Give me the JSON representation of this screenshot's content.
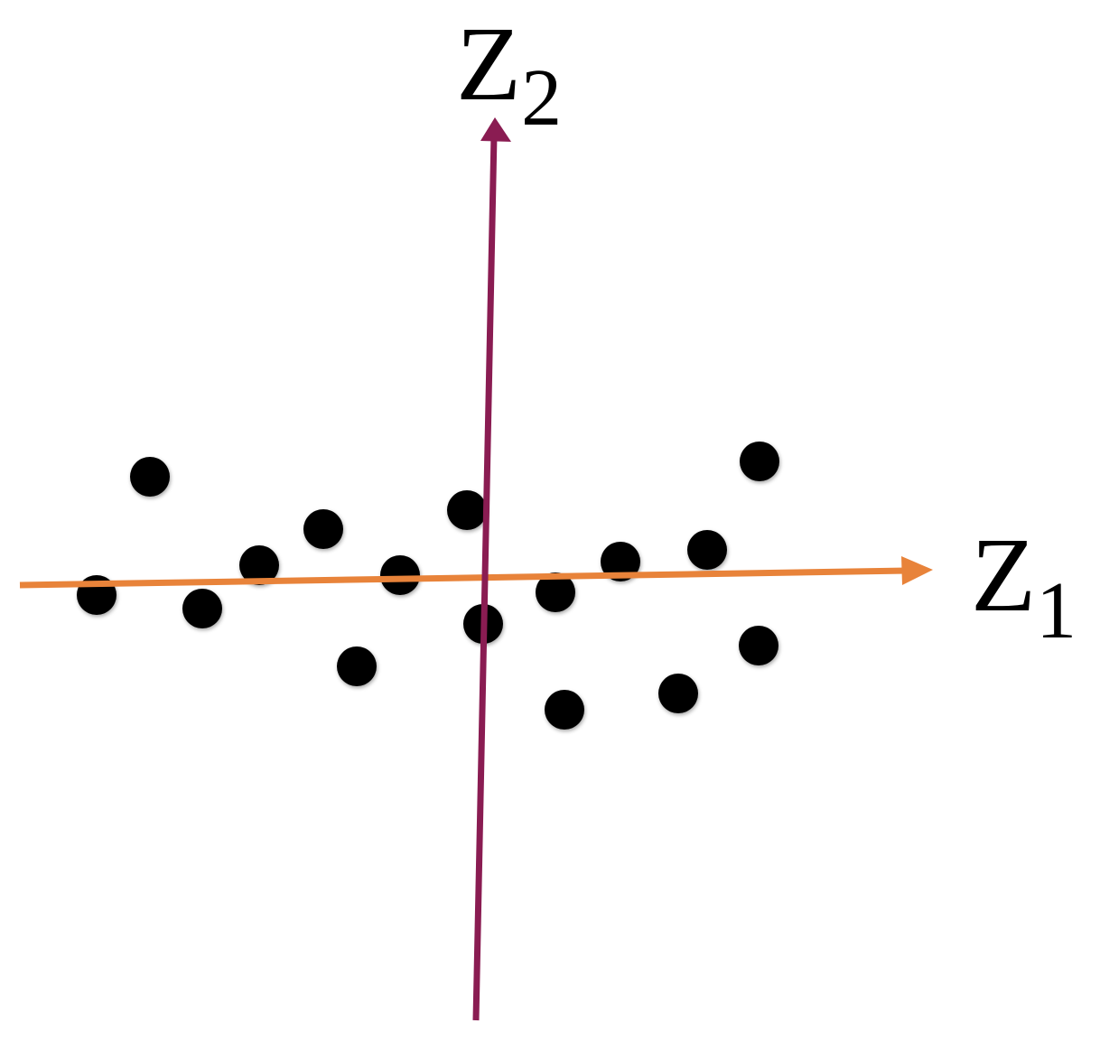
{
  "axes": {
    "z1": {
      "label": "Z",
      "subscript": "1",
      "color": "#e8833a"
    },
    "z2": {
      "label": "Z",
      "subscript": "2",
      "color": "#8a1c52"
    }
  },
  "points": {
    "color": "#000000"
  }
}
